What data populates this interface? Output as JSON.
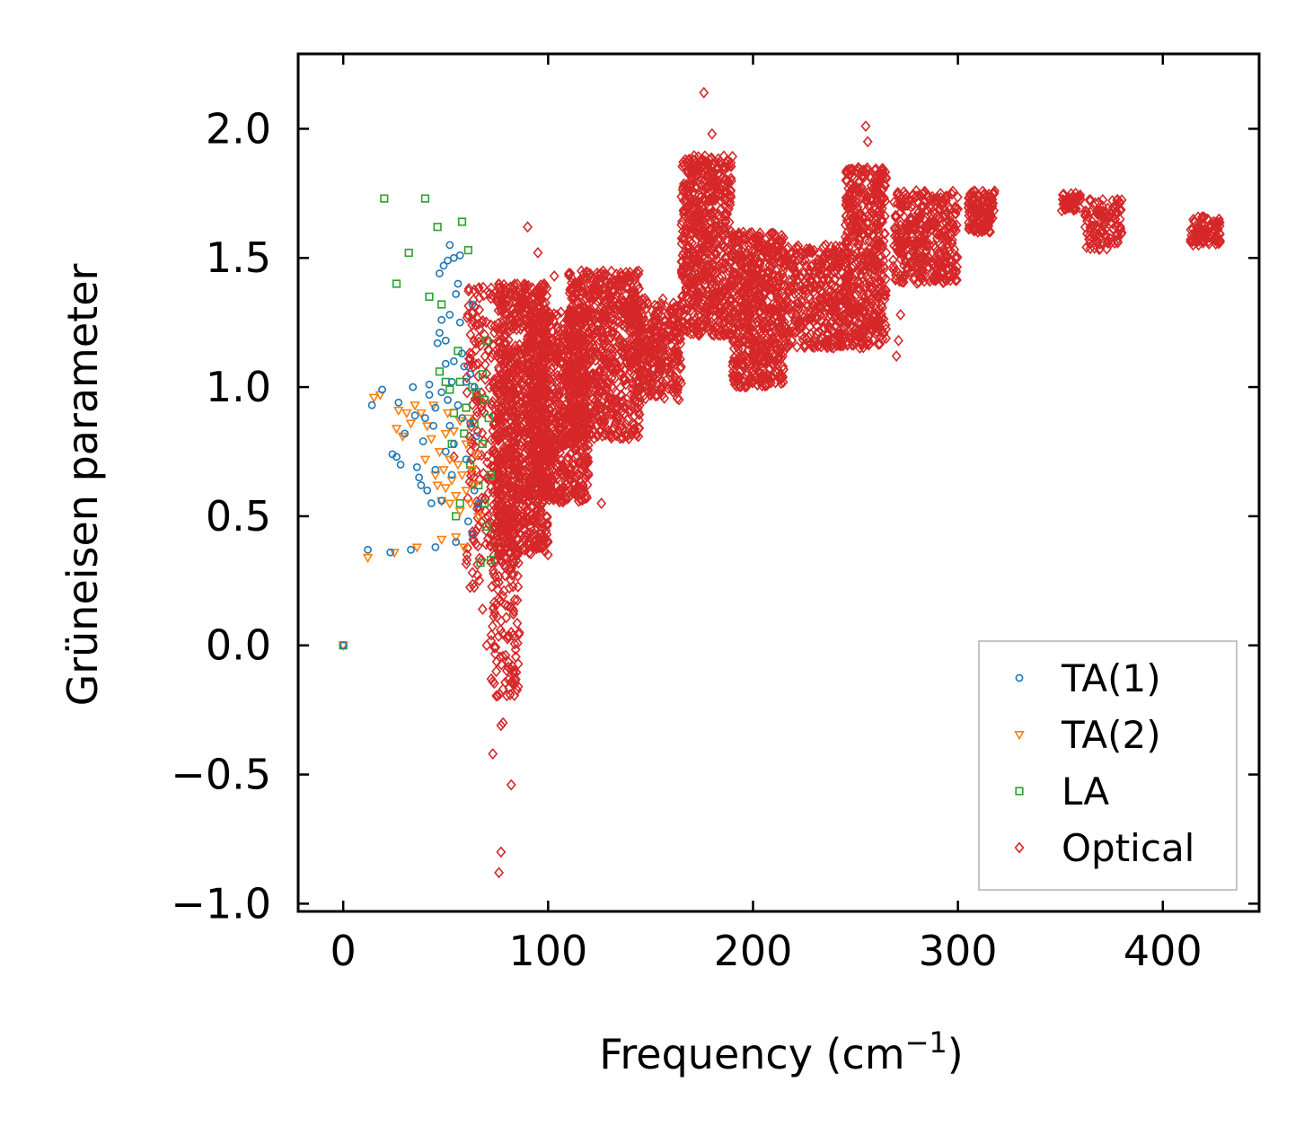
{
  "chart_data": {
    "type": "scatter",
    "title": "",
    "xlabel": "Frequency (cm",
    "xlabel_exponent": "−1",
    "xlabel_close": ")",
    "ylabel": "Grüneisen parameter",
    "xlim": [
      -22,
      447
    ],
    "ylim": [
      -1.03,
      2.29
    ],
    "xticks": [
      0,
      100,
      200,
      300,
      400
    ],
    "xtick_labels": [
      "0",
      "100",
      "200",
      "300",
      "400"
    ],
    "yticks": [
      -1.0,
      -0.5,
      0.0,
      0.5,
      1.0,
      1.5,
      2.0
    ],
    "ytick_labels": [
      "−1.0",
      "−0.5",
      "0.0",
      "0.5",
      "1.0",
      "1.5",
      "2.0"
    ],
    "grid": false,
    "legend_position": "lower-right",
    "series": [
      {
        "name": "TA(1)",
        "marker": "circle",
        "color": "#1f77b4",
        "points": [
          [
            0,
            0
          ],
          [
            12,
            0.37
          ],
          [
            14,
            0.93
          ],
          [
            19,
            0.99
          ],
          [
            23,
            0.36
          ],
          [
            24,
            0.74
          ],
          [
            26,
            0.73
          ],
          [
            27,
            0.94
          ],
          [
            28,
            0.7
          ],
          [
            30,
            0.82
          ],
          [
            33,
            0.37
          ],
          [
            34,
            1.0
          ],
          [
            35,
            0.89
          ],
          [
            36,
            0.69
          ],
          [
            37,
            0.65
          ],
          [
            38,
            0.62
          ],
          [
            39,
            0.79
          ],
          [
            40,
            0.88
          ],
          [
            41,
            0.6
          ],
          [
            42,
            0.97
          ],
          [
            42,
            1.01
          ],
          [
            43,
            0.55
          ],
          [
            44,
            0.85
          ],
          [
            45,
            0.92
          ],
          [
            45,
            0.68
          ],
          [
            45,
            0.38
          ],
          [
            46,
            1.17
          ],
          [
            47,
            1.21
          ],
          [
            47,
            1.44
          ],
          [
            48,
            1.26
          ],
          [
            48,
            0.98
          ],
          [
            48,
            0.56
          ],
          [
            49,
            1.47
          ],
          [
            50,
            1.18
          ],
          [
            50,
            1.09
          ],
          [
            50,
            0.75
          ],
          [
            51,
            1.49
          ],
          [
            51,
            0.95
          ],
          [
            52,
            1.55
          ],
          [
            52,
            1.28
          ],
          [
            52,
            0.85
          ],
          [
            53,
            1.02
          ],
          [
            53,
            0.66
          ],
          [
            54,
            1.5
          ],
          [
            54,
            1.1
          ],
          [
            54,
            0.78
          ],
          [
            55,
            1.36
          ],
          [
            55,
            0.4
          ],
          [
            56,
            1.4
          ],
          [
            56,
            0.93
          ],
          [
            57,
            1.51
          ],
          [
            57,
            1.25
          ],
          [
            58,
            1.13
          ],
          [
            58,
            0.88
          ],
          [
            59,
            1.08
          ],
          [
            60,
            1.02
          ],
          [
            60,
            0.72
          ],
          [
            61,
            0.48
          ],
          [
            62,
            1.05
          ],
          [
            62,
            0.86
          ],
          [
            63,
            1.32
          ],
          [
            63,
            0.43
          ],
          [
            64,
            1.0
          ],
          [
            64,
            0.6
          ],
          [
            65,
            0.81
          ],
          [
            66,
            0.55
          ]
        ]
      },
      {
        "name": "TA(2)",
        "marker": "triangle-down",
        "color": "#ff7f0e",
        "points": [
          [
            0,
            0
          ],
          [
            12,
            0.34
          ],
          [
            15,
            0.96
          ],
          [
            18,
            0.97
          ],
          [
            25,
            0.36
          ],
          [
            26,
            0.84
          ],
          [
            27,
            0.91
          ],
          [
            29,
            0.81
          ],
          [
            31,
            0.9
          ],
          [
            33,
            0.86
          ],
          [
            35,
            0.93
          ],
          [
            36,
            0.38
          ],
          [
            38,
            0.9
          ],
          [
            40,
            0.72
          ],
          [
            41,
            0.85
          ],
          [
            43,
            0.8
          ],
          [
            44,
            0.93
          ],
          [
            45,
            0.66
          ],
          [
            46,
            0.62
          ],
          [
            47,
            0.75
          ],
          [
            48,
            0.56
          ],
          [
            48,
            0.41
          ],
          [
            49,
            0.68
          ],
          [
            50,
            0.82
          ],
          [
            50,
            0.61
          ],
          [
            51,
            0.9
          ],
          [
            52,
            0.55
          ],
          [
            52,
            0.72
          ],
          [
            53,
            0.64
          ],
          [
            54,
            0.83
          ],
          [
            55,
            0.58
          ],
          [
            55,
            0.42
          ],
          [
            56,
            0.7
          ],
          [
            57,
            0.87
          ],
          [
            57,
            0.52
          ],
          [
            58,
            0.66
          ],
          [
            59,
            0.38
          ],
          [
            60,
            0.6
          ],
          [
            60,
            0.78
          ],
          [
            61,
            0.88
          ],
          [
            62,
            0.55
          ],
          [
            63,
            0.68
          ],
          [
            64,
            0.62
          ],
          [
            65,
            0.74
          ],
          [
            66,
            0.5
          ]
        ]
      },
      {
        "name": "LA",
        "marker": "square",
        "color": "#2ca02c",
        "points": [
          [
            0,
            0
          ],
          [
            20,
            1.73
          ],
          [
            26,
            1.4
          ],
          [
            32,
            1.52
          ],
          [
            40,
            1.73
          ],
          [
            42,
            1.35
          ],
          [
            46,
            1.62
          ],
          [
            47,
            1.06
          ],
          [
            48,
            1.32
          ],
          [
            50,
            1.02
          ],
          [
            52,
            0.99
          ],
          [
            53,
            0.78
          ],
          [
            54,
            0.9
          ],
          [
            55,
            0.5
          ],
          [
            56,
            1.14
          ],
          [
            57,
            1.02
          ],
          [
            57,
            0.55
          ],
          [
            58,
            1.64
          ],
          [
            59,
            0.82
          ],
          [
            60,
            0.92
          ],
          [
            61,
            1.53
          ],
          [
            62,
            0.7
          ],
          [
            63,
            1.0
          ],
          [
            64,
            0.86
          ],
          [
            65,
            0.98
          ],
          [
            66,
            0.62
          ],
          [
            67,
            0.32
          ],
          [
            68,
            1.05
          ],
          [
            68,
            0.78
          ],
          [
            69,
            0.95
          ],
          [
            69,
            0.55
          ],
          [
            70,
            1.18
          ],
          [
            70,
            0.46
          ],
          [
            71,
            0.88
          ],
          [
            72,
            0.66
          ],
          [
            72,
            0.33
          ]
        ]
      },
      {
        "name": "Optical",
        "marker": "diamond",
        "color": "#d62728",
        "clusters": [
          {
            "x_range": [
              60,
              75
            ],
            "y_range": [
              0.22,
              1.4
            ],
            "count": 170
          },
          {
            "x_range": [
              72,
              86
            ],
            "y_range": [
              -0.2,
              1.05
            ],
            "count": 260
          },
          {
            "x_range": [
              75,
              100
            ],
            "y_range": [
              0.35,
              1.4
            ],
            "count": 900
          },
          {
            "x_range": [
              90,
              120
            ],
            "y_range": [
              0.55,
              1.3
            ],
            "count": 800
          },
          {
            "x_range": [
              110,
              145
            ],
            "y_range": [
              0.8,
              1.45
            ],
            "count": 750
          },
          {
            "x_range": [
              140,
              165
            ],
            "y_range": [
              0.95,
              1.35
            ],
            "count": 350
          },
          {
            "x_range": [
              165,
              190
            ],
            "y_range": [
              1.2,
              1.9
            ],
            "count": 650
          },
          {
            "x_range": [
              190,
              215
            ],
            "y_range": [
              1.0,
              1.6
            ],
            "count": 600
          },
          {
            "x_range": [
              215,
              245
            ],
            "y_range": [
              1.15,
              1.55
            ],
            "count": 400
          },
          {
            "x_range": [
              245,
              265
            ],
            "y_range": [
              1.15,
              1.85
            ],
            "count": 500
          },
          {
            "x_range": [
              268,
              300
            ],
            "y_range": [
              1.4,
              1.76
            ],
            "count": 380
          },
          {
            "x_range": [
              305,
              318
            ],
            "y_range": [
              1.6,
              1.76
            ],
            "count": 120
          },
          {
            "x_range": [
              350,
              360
            ],
            "y_range": [
              1.68,
              1.75
            ],
            "count": 50
          },
          {
            "x_range": [
              362,
              380
            ],
            "y_range": [
              1.53,
              1.73
            ],
            "count": 110
          },
          {
            "x_range": [
              413,
              428
            ],
            "y_range": [
              1.55,
              1.66
            ],
            "count": 90
          }
        ],
        "outliers": [
          [
            54,
            0.73
          ],
          [
            68,
            0.14
          ],
          [
            70,
            0.0
          ],
          [
            73,
            -0.14
          ],
          [
            73,
            -0.42
          ],
          [
            77,
            -0.31
          ],
          [
            78,
            -0.3
          ],
          [
            78,
            -0.17
          ],
          [
            77,
            -0.8
          ],
          [
            76,
            -0.88
          ],
          [
            82,
            -0.54
          ],
          [
            82,
            0.05
          ],
          [
            90,
            1.62
          ],
          [
            95,
            1.52
          ],
          [
            103,
            1.43
          ],
          [
            126,
            0.55
          ],
          [
            176,
            2.14
          ],
          [
            180,
            1.98
          ],
          [
            255,
            2.01
          ],
          [
            256,
            1.95
          ],
          [
            270,
            1.12
          ],
          [
            271,
            1.18
          ],
          [
            272,
            1.28
          ]
        ]
      }
    ]
  }
}
